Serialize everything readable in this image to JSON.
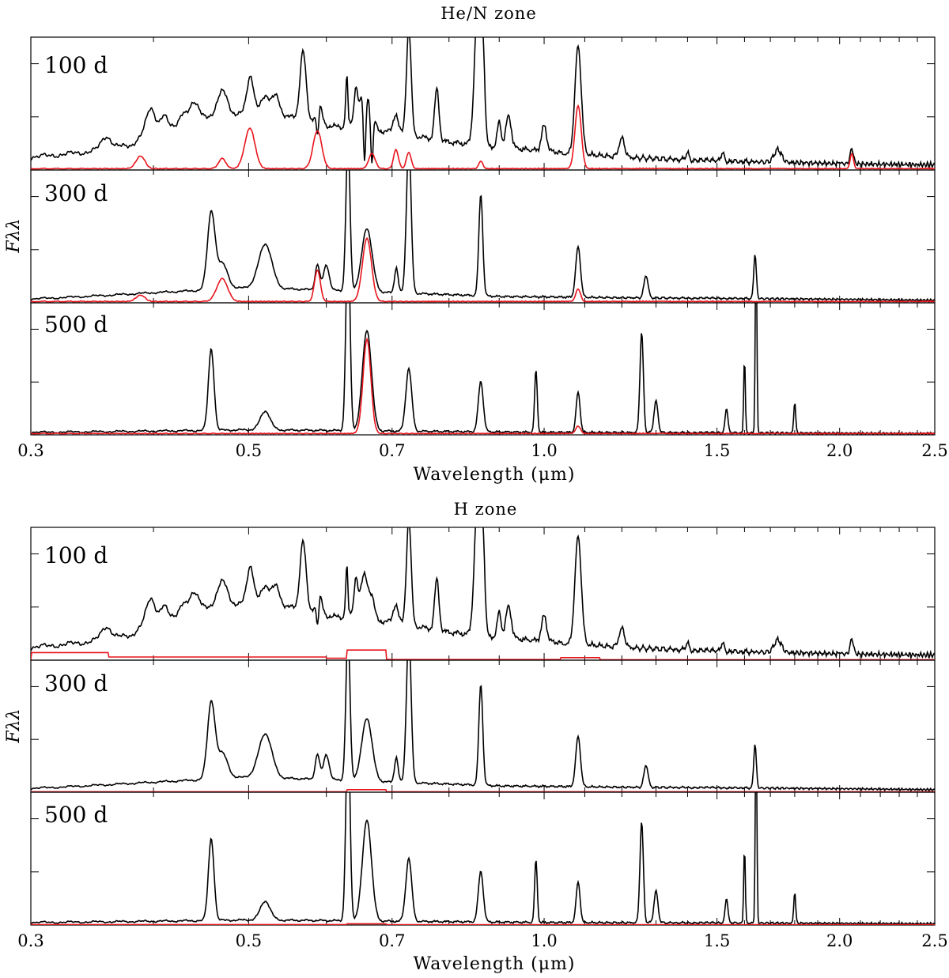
{
  "chart_data": [
    {
      "type": "line",
      "title": "He/N zone",
      "xlabel": "Wavelength (μm)",
      "ylabel": "Fλλ",
      "xscale": "log",
      "xlim": [
        0.3,
        2.5
      ],
      "xticks": [
        0.3,
        0.5,
        0.7,
        1.0,
        1.5,
        2.0,
        2.5
      ],
      "xtick_labels": [
        "0.3",
        "0.5",
        "0.7",
        "1.0",
        "1.5",
        "2.0",
        "2.5"
      ],
      "series_colors": {
        "total": "#000000",
        "zone": "#e8141c"
      },
      "panels": [
        {
          "label": "100 d",
          "continuum": [
            [
              0.3,
              0.1
            ],
            [
              0.34,
              0.14
            ],
            [
              0.38,
              0.2
            ],
            [
              0.4,
              0.33
            ],
            [
              0.45,
              0.4
            ],
            [
              0.5,
              0.45
            ],
            [
              0.55,
              0.42
            ],
            [
              0.6,
              0.35
            ],
            [
              0.7,
              0.3
            ],
            [
              0.8,
              0.22
            ],
            [
              0.9,
              0.18
            ],
            [
              1.0,
              0.15
            ],
            [
              1.2,
              0.1
            ],
            [
              1.5,
              0.07
            ],
            [
              2.0,
              0.05
            ],
            [
              2.5,
              0.04
            ]
          ],
          "lines": [
            [
              0.358,
              0.1,
              0.004
            ],
            [
              0.397,
              0.18,
              0.004
            ],
            [
              0.41,
              0.08,
              0.003
            ],
            [
              0.428,
              0.06,
              0.003
            ],
            [
              0.44,
              0.16,
              0.005
            ],
            [
              0.47,
              0.2,
              0.006
            ],
            [
              0.502,
              0.3,
              0.004
            ],
            [
              0.52,
              0.15,
              0.005
            ],
            [
              0.533,
              0.15,
              0.005
            ],
            [
              0.568,
              0.55,
              0.004
            ],
            [
              0.589,
              0.2,
              0.004
            ],
            [
              0.63,
              0.45,
              0.002
            ],
            [
              0.643,
              0.3,
              0.003
            ],
            [
              0.656,
              0.35,
              0.006
            ],
            [
              0.668,
              0.15,
              0.004
            ],
            [
              0.706,
              0.15,
              0.004
            ],
            [
              0.728,
              0.85,
              0.004
            ],
            [
              0.7775,
              0.4,
              0.004
            ],
            [
              0.855,
              1.05,
              0.006
            ],
            [
              0.866,
              0.75,
              0.004
            ],
            [
              0.9,
              0.2,
              0.004
            ],
            [
              0.92,
              0.25,
              0.006
            ],
            [
              1.0,
              0.2,
              0.006
            ],
            [
              1.083,
              0.85,
              0.008
            ],
            [
              1.2,
              0.15,
              0.008
            ],
            [
              1.4,
              0.06,
              0.005
            ],
            [
              1.52,
              0.07,
              0.006
            ],
            [
              1.73,
              0.1,
              0.015
            ],
            [
              2.058,
              0.12,
              0.008
            ]
          ],
          "absorptions": [
            [
              0.5876,
              0.25,
              0.002
            ],
            [
              0.6678,
              0.0,
              0.002
            ],
            [
              0.6563,
              0.0,
              0.002
            ],
            [
              0.633,
              0.38,
              0.0015
            ],
            [
              1.05,
              0.12,
              0.006
            ],
            [
              2.0,
              0.06,
              0.005
            ]
          ],
          "zone_peaks": [
            [
              0.388,
              0.1,
              0.004
            ],
            [
              0.47,
              0.08,
              0.004
            ],
            [
              0.5015,
              0.32,
              0.006
            ],
            [
              0.5876,
              0.3,
              0.006
            ],
            [
              0.6678,
              0.12,
              0.005
            ],
            [
              0.7065,
              0.15,
              0.004
            ],
            [
              0.728,
              0.13,
              0.004
            ],
            [
              0.862,
              0.06,
              0.004
            ],
            [
              1.083,
              0.5,
              0.008
            ],
            [
              2.058,
              0.12,
              0.008
            ]
          ]
        },
        {
          "label": "300 d",
          "continuum": [
            [
              0.3,
              0.03
            ],
            [
              0.4,
              0.08
            ],
            [
              0.5,
              0.12
            ],
            [
              0.6,
              0.1
            ],
            [
              0.7,
              0.08
            ],
            [
              0.9,
              0.05
            ],
            [
              1.2,
              0.04
            ],
            [
              2.5,
              0.02
            ]
          ],
          "lines": [
            [
              0.458,
              0.6,
              0.004
            ],
            [
              0.47,
              0.2,
              0.006
            ],
            [
              0.52,
              0.35,
              0.008
            ],
            [
              0.5876,
              0.2,
              0.003
            ],
            [
              0.6,
              0.2,
              0.004
            ],
            [
              0.6312,
              1.2,
              0.003
            ],
            [
              0.66,
              0.5,
              0.008
            ],
            [
              0.707,
              0.2,
              0.003
            ],
            [
              0.728,
              1.2,
              0.004
            ],
            [
              0.862,
              0.8,
              0.004
            ],
            [
              1.083,
              0.4,
              0.006
            ],
            [
              1.27,
              0.18,
              0.006
            ],
            [
              1.64,
              0.35,
              0.005
            ]
          ],
          "absorptions": [],
          "zone_peaks": [
            [
              0.388,
              0.05,
              0.004
            ],
            [
              0.47,
              0.18,
              0.006
            ],
            [
              0.5876,
              0.25,
              0.004
            ],
            [
              0.66,
              0.5,
              0.007
            ],
            [
              1.083,
              0.1,
              0.006
            ]
          ]
        },
        {
          "label": "500 d",
          "continuum": [
            [
              0.3,
              0.02
            ],
            [
              0.5,
              0.04
            ],
            [
              0.7,
              0.03
            ],
            [
              1.0,
              0.02
            ],
            [
              2.5,
              0.01
            ]
          ],
          "lines": [
            [
              0.458,
              0.65,
              0.003
            ],
            [
              0.52,
              0.15,
              0.006
            ],
            [
              0.6312,
              1.6,
              0.003
            ],
            [
              0.66,
              0.8,
              0.007
            ],
            [
              0.728,
              0.5,
              0.005
            ],
            [
              0.862,
              0.4,
              0.005
            ],
            [
              0.981,
              0.5,
              0.003
            ],
            [
              1.083,
              0.32,
              0.005
            ],
            [
              1.257,
              0.8,
              0.005
            ],
            [
              1.3,
              0.25,
              0.006
            ],
            [
              1.534,
              0.2,
              0.005
            ],
            [
              1.6,
              0.6,
              0.003
            ],
            [
              1.644,
              1.6,
              0.003
            ],
            [
              1.8,
              0.25,
              0.004
            ]
          ],
          "absorptions": [],
          "zone_peaks": [
            [
              0.66,
              0.75,
              0.006
            ],
            [
              1.083,
              0.06,
              0.006
            ]
          ]
        }
      ]
    },
    {
      "type": "line",
      "title": "H zone",
      "xlabel": "Wavelength (μm)",
      "ylabel": "Fλλ",
      "xscale": "log",
      "xlim": [
        0.3,
        2.5
      ],
      "xticks": [
        0.3,
        0.5,
        0.7,
        1.0,
        1.5,
        2.0,
        2.5
      ],
      "xtick_labels": [
        "0.3",
        "0.5",
        "0.7",
        "1.0",
        "1.5",
        "2.0",
        "2.5"
      ],
      "series_colors": {
        "total": "#000000",
        "zone": "#e8141c"
      },
      "panels": [
        {
          "label": "100 d",
          "continuum": [
            [
              0.3,
              0.1
            ],
            [
              0.34,
              0.14
            ],
            [
              0.38,
              0.2
            ],
            [
              0.4,
              0.33
            ],
            [
              0.45,
              0.4
            ],
            [
              0.5,
              0.45
            ],
            [
              0.55,
              0.42
            ],
            [
              0.6,
              0.35
            ],
            [
              0.7,
              0.3
            ],
            [
              0.8,
              0.22
            ],
            [
              0.9,
              0.18
            ],
            [
              1.0,
              0.15
            ],
            [
              1.2,
              0.1
            ],
            [
              1.5,
              0.07
            ],
            [
              2.0,
              0.05
            ],
            [
              2.5,
              0.04
            ]
          ],
          "lines": [
            [
              0.358,
              0.1,
              0.004
            ],
            [
              0.397,
              0.18,
              0.004
            ],
            [
              0.41,
              0.08,
              0.003
            ],
            [
              0.428,
              0.06,
              0.003
            ],
            [
              0.44,
              0.16,
              0.005
            ],
            [
              0.47,
              0.2,
              0.006
            ],
            [
              0.502,
              0.3,
              0.004
            ],
            [
              0.52,
              0.15,
              0.005
            ],
            [
              0.533,
              0.15,
              0.005
            ],
            [
              0.568,
              0.55,
              0.004
            ],
            [
              0.589,
              0.2,
              0.004
            ],
            [
              0.63,
              0.45,
              0.002
            ],
            [
              0.643,
              0.3,
              0.003
            ],
            [
              0.656,
              0.35,
              0.006
            ],
            [
              0.668,
              0.15,
              0.004
            ],
            [
              0.706,
              0.15,
              0.004
            ],
            [
              0.728,
              0.85,
              0.004
            ],
            [
              0.7775,
              0.4,
              0.004
            ],
            [
              0.855,
              1.05,
              0.006
            ],
            [
              0.866,
              0.75,
              0.004
            ],
            [
              0.9,
              0.2,
              0.004
            ],
            [
              0.92,
              0.25,
              0.006
            ],
            [
              1.0,
              0.2,
              0.006
            ],
            [
              1.083,
              0.85,
              0.008
            ],
            [
              1.2,
              0.15,
              0.008
            ],
            [
              1.4,
              0.06,
              0.005
            ],
            [
              1.52,
              0.07,
              0.006
            ],
            [
              1.73,
              0.1,
              0.015
            ],
            [
              2.058,
              0.12,
              0.008
            ]
          ],
          "absorptions": [
            [
              0.5876,
              0.25,
              0.002
            ],
            [
              0.633,
              0.38,
              0.0015
            ],
            [
              1.05,
              0.12,
              0.006
            ],
            [
              2.0,
              0.06,
              0.005
            ]
          ],
          "zone_bands": [
            [
              0.3,
              0.36,
              0.06
            ],
            [
              0.36,
              0.6,
              0.025
            ],
            [
              0.6,
              0.63,
              0.015
            ],
            [
              0.63,
              0.69,
              0.08
            ],
            [
              0.69,
              1.04,
              0.005
            ],
            [
              1.04,
              1.14,
              0.02
            ],
            [
              1.14,
              2.5,
              0.004
            ]
          ]
        },
        {
          "label": "300 d",
          "continuum": [
            [
              0.3,
              0.03
            ],
            [
              0.4,
              0.08
            ],
            [
              0.5,
              0.12
            ],
            [
              0.6,
              0.1
            ],
            [
              0.7,
              0.08
            ],
            [
              0.9,
              0.05
            ],
            [
              1.2,
              0.04
            ],
            [
              2.5,
              0.02
            ]
          ],
          "lines": [
            [
              0.458,
              0.6,
              0.004
            ],
            [
              0.47,
              0.2,
              0.006
            ],
            [
              0.52,
              0.35,
              0.008
            ],
            [
              0.5876,
              0.2,
              0.003
            ],
            [
              0.6,
              0.2,
              0.004
            ],
            [
              0.6312,
              1.2,
              0.003
            ],
            [
              0.66,
              0.5,
              0.008
            ],
            [
              0.707,
              0.2,
              0.003
            ],
            [
              0.728,
              1.2,
              0.004
            ],
            [
              0.862,
              0.8,
              0.004
            ],
            [
              1.083,
              0.4,
              0.006
            ],
            [
              1.27,
              0.18,
              0.006
            ],
            [
              1.64,
              0.35,
              0.005
            ]
          ],
          "absorptions": [],
          "zone_bands": [
            [
              0.3,
              0.63,
              0.004
            ],
            [
              0.63,
              0.69,
              0.02
            ],
            [
              0.69,
              2.5,
              0.004
            ]
          ]
        },
        {
          "label": "500 d",
          "continuum": [
            [
              0.3,
              0.02
            ],
            [
              0.5,
              0.04
            ],
            [
              0.7,
              0.03
            ],
            [
              1.0,
              0.02
            ],
            [
              2.5,
              0.01
            ]
          ],
          "lines": [
            [
              0.458,
              0.65,
              0.003
            ],
            [
              0.52,
              0.15,
              0.006
            ],
            [
              0.6312,
              1.6,
              0.003
            ],
            [
              0.66,
              0.8,
              0.007
            ],
            [
              0.728,
              0.5,
              0.005
            ],
            [
              0.862,
              0.4,
              0.005
            ],
            [
              0.981,
              0.5,
              0.003
            ],
            [
              1.083,
              0.32,
              0.005
            ],
            [
              1.257,
              0.8,
              0.005
            ],
            [
              1.3,
              0.25,
              0.006
            ],
            [
              1.534,
              0.2,
              0.005
            ],
            [
              1.6,
              0.6,
              0.003
            ],
            [
              1.644,
              1.6,
              0.003
            ],
            [
              1.8,
              0.25,
              0.004
            ]
          ],
          "absorptions": [],
          "zone_bands": [
            [
              0.3,
              0.63,
              0.004
            ],
            [
              0.63,
              0.69,
              0.01
            ],
            [
              0.69,
              2.5,
              0.003
            ]
          ]
        }
      ]
    }
  ]
}
